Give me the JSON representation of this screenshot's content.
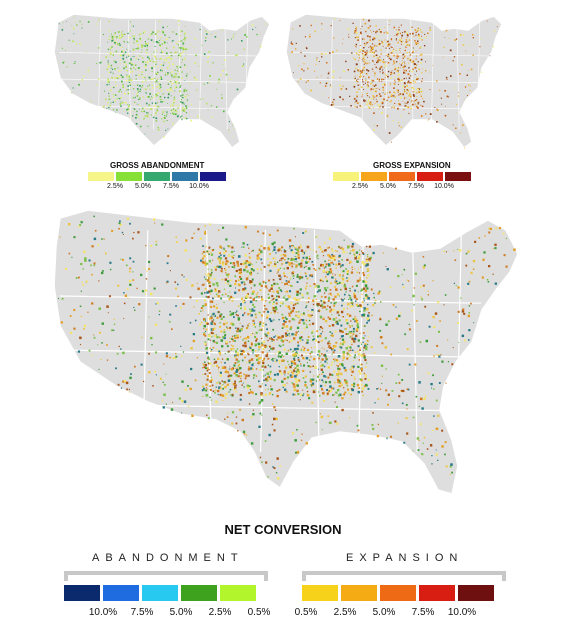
{
  "small_maps": {
    "abandonment": {
      "title": "GROSS ABANDONMENT",
      "colors": [
        "#f5f58a",
        "#86e036",
        "#35a870",
        "#2e78a8",
        "#1a1a8a"
      ],
      "ticks": [
        "2.5%",
        "5.0%",
        "7.5%",
        "10.0%"
      ],
      "dot_colors": [
        "#ecf27a",
        "#d8ee6a",
        "#b9e25a",
        "#86cf48",
        "#55b845",
        "#2f9a5e"
      ]
    },
    "expansion": {
      "title": "GROSS EXPANSION",
      "colors": [
        "#f7f27a",
        "#f7a51b",
        "#ef6a1b",
        "#d81e12",
        "#7a1010"
      ],
      "ticks": [
        "2.5%",
        "5.0%",
        "7.5%",
        "10.0%"
      ],
      "dot_colors": [
        "#f2ec6a",
        "#eec540",
        "#e6a12a",
        "#d97a20",
        "#b95a18",
        "#8a3a14"
      ]
    }
  },
  "net_conversion": {
    "title": "NET CONVERSION",
    "abandonment_label": "ABANDONMENT",
    "expansion_label": "EXPANSION",
    "abandonment_colors": [
      "#0b2a6e",
      "#1f6be0",
      "#27c9f0",
      "#3ea21e",
      "#b2f52c"
    ],
    "expansion_colors": [
      "#f7d21a",
      "#f5ab14",
      "#ef6a14",
      "#d81e12",
      "#6e1010"
    ],
    "abandonment_ticks": [
      "10.0%",
      "7.5%",
      "5.0%",
      "2.5%",
      "0.5%"
    ],
    "expansion_ticks": [
      "0.5%",
      "2.5%",
      "5.0%",
      "7.5%",
      "10.0%"
    ],
    "dot_colors": [
      "#f3e36a",
      "#eec540",
      "#e2a02a",
      "#cf7a22",
      "#a8561a",
      "#7cc04a",
      "#3e9a3a",
      "#2a7a8a"
    ]
  },
  "map_colors": {
    "land": "#dedede",
    "border": "#ffffff"
  }
}
